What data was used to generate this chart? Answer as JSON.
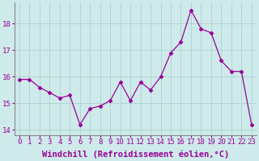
{
  "x": [
    0,
    1,
    2,
    3,
    4,
    5,
    6,
    7,
    8,
    9,
    10,
    11,
    12,
    13,
    14,
    15,
    16,
    17,
    18,
    19,
    20,
    21,
    22,
    23
  ],
  "y": [
    15.9,
    15.9,
    15.6,
    15.4,
    15.2,
    15.3,
    14.2,
    14.8,
    14.9,
    15.1,
    15.8,
    15.1,
    15.8,
    15.5,
    16.0,
    16.9,
    17.3,
    18.5,
    17.8,
    17.65,
    16.6,
    16.2,
    16.2,
    14.2
  ],
  "ylim": [
    13.8,
    18.8
  ],
  "yticks": [
    14,
    15,
    16,
    17,
    18
  ],
  "line_color": "#990099",
  "marker_color": "#990099",
  "bg_color": "#ceeaea",
  "grid_color": "#aacccc",
  "xlabel": "Windchill (Refroidissement éolien,°C)",
  "xlabel_fontsize": 7.5,
  "tick_fontsize": 6.5,
  "figsize": [
    3.2,
    2.0
  ],
  "dpi": 100
}
